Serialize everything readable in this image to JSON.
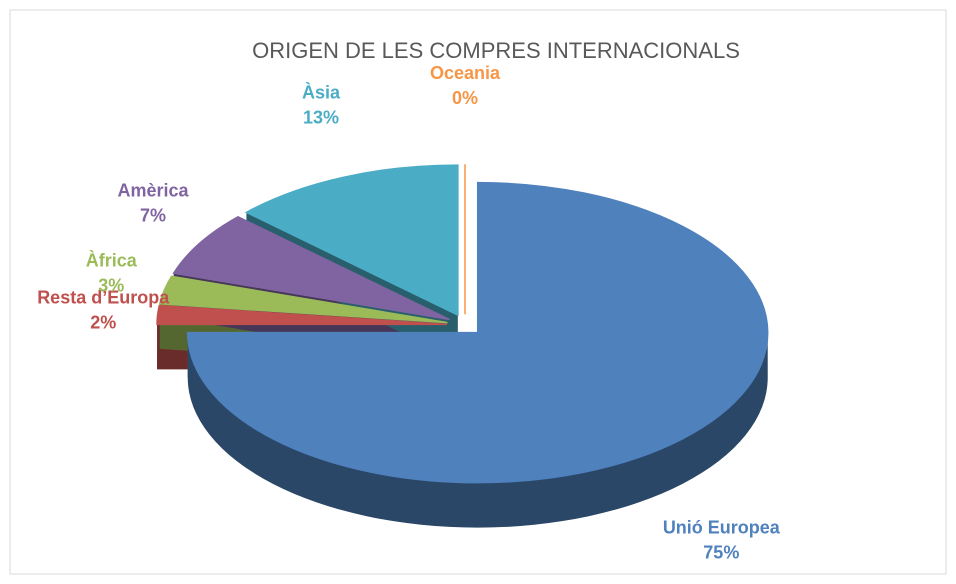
{
  "chart_data": {
    "type": "pie",
    "title": "ORIGEN DE LES COMPRES INTERNACIONALS",
    "categories": [
      "Unió Europea",
      "Resta d’Europa",
      "Àfrica",
      "Amèrica",
      "Àsia",
      "Oceania"
    ],
    "values": [
      75,
      2,
      3,
      7,
      13,
      0
    ],
    "value_labels": [
      "75%",
      "2%",
      "3%",
      "7%",
      "13%",
      "0%"
    ],
    "colors": [
      "#4f81bd",
      "#c0504d",
      "#9bbb59",
      "#8064a2",
      "#4bacc6",
      "#f79646"
    ]
  }
}
